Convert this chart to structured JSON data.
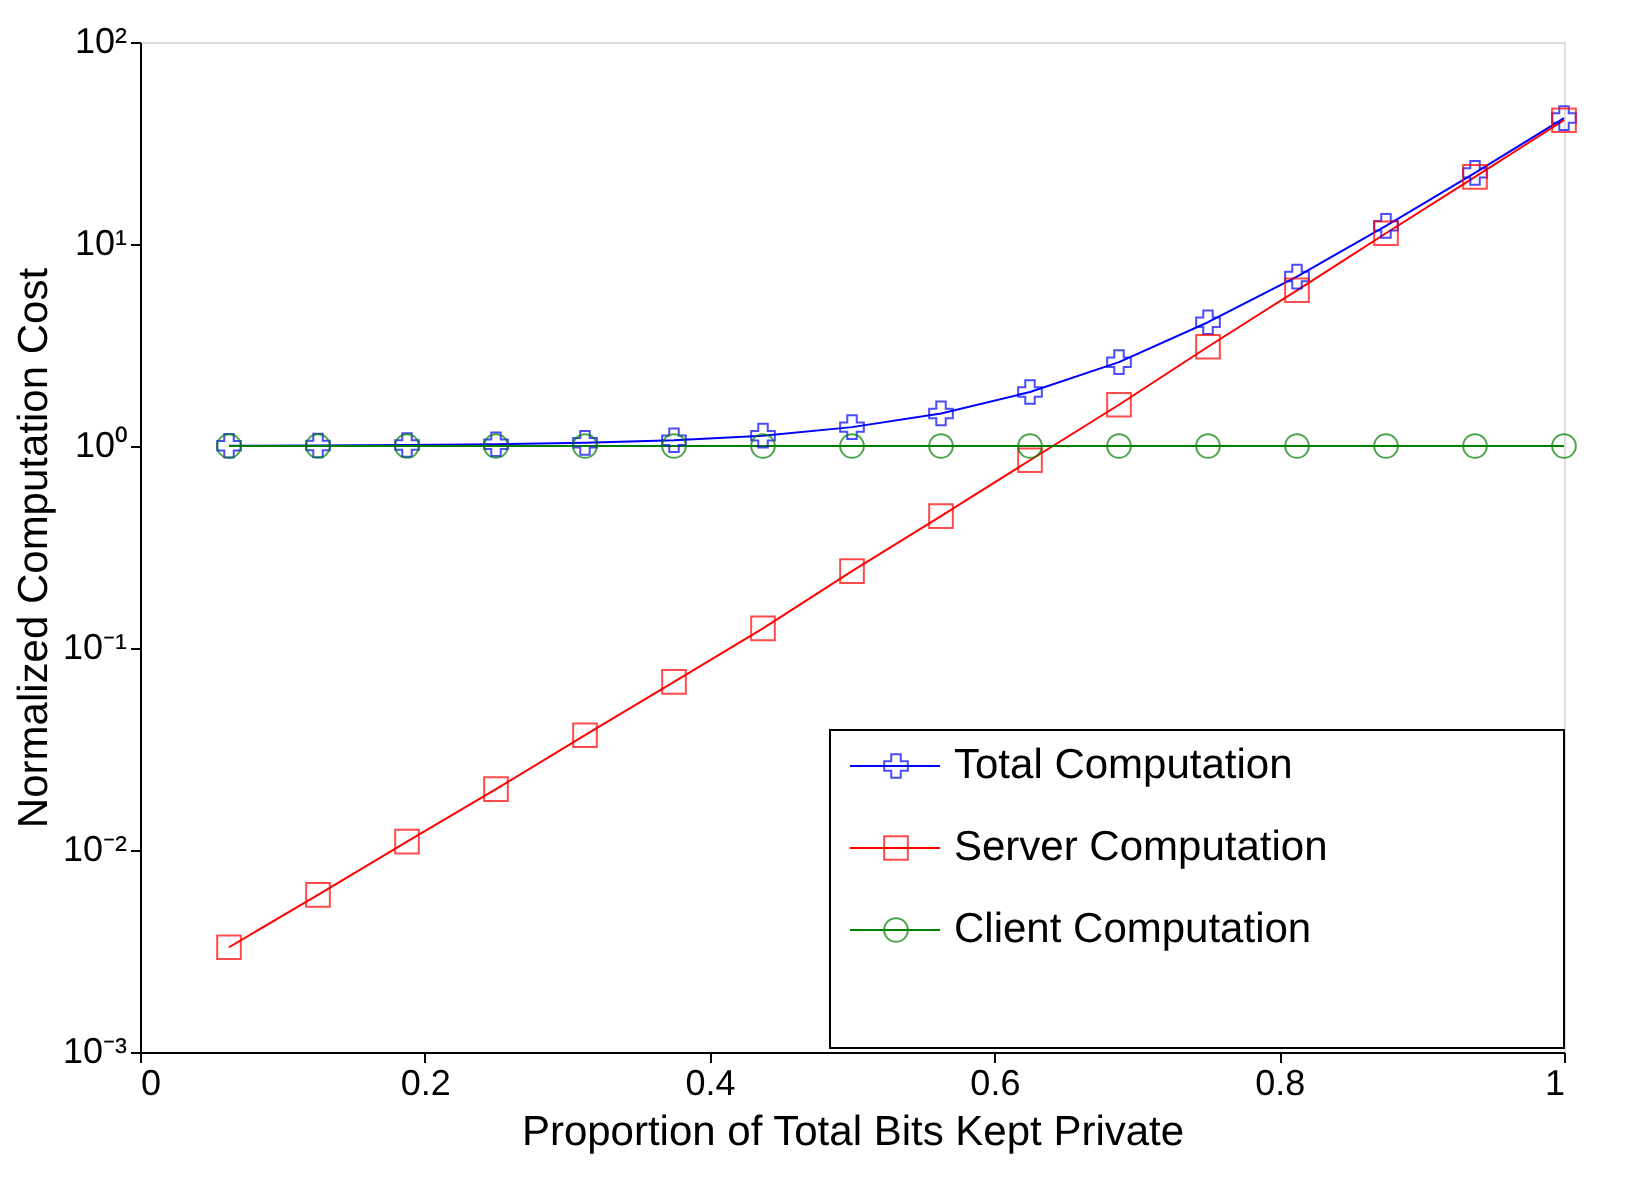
{
  "chart_data": {
    "type": "line",
    "xlabel": "Proportion of Total Bits Kept Private",
    "ylabel": "Normalized Computation Cost",
    "x": [
      0.0625,
      0.125,
      0.1875,
      0.25,
      0.3125,
      0.375,
      0.4375,
      0.5,
      0.5625,
      0.625,
      0.6875,
      0.75,
      0.8125,
      0.875,
      0.9375,
      1.0
    ],
    "series": [
      {
        "name": "Total Computation",
        "color": "#0000ff",
        "marker": "cross",
        "values": [
          1.003,
          1.006,
          1.011,
          1.02,
          1.037,
          1.068,
          1.125,
          1.24,
          1.45,
          1.85,
          2.6,
          4.1,
          6.9,
          12.3,
          22.5,
          42
        ]
      },
      {
        "name": "Server Computation",
        "color": "#ff0000",
        "marker": "square",
        "values": [
          0.0033,
          0.006,
          0.011,
          0.02,
          0.037,
          0.068,
          0.125,
          0.24,
          0.45,
          0.85,
          1.6,
          3.1,
          5.9,
          11.3,
          21.5,
          41
        ]
      },
      {
        "name": "Client Computation",
        "color": "#008000",
        "marker": "circle",
        "values": [
          1,
          1,
          1,
          1,
          1,
          1,
          1,
          1,
          1,
          1,
          1,
          1,
          1,
          1,
          1,
          1
        ]
      }
    ],
    "log": "y",
    "xlim": [
      0,
      1
    ],
    "xticks": [
      0,
      0.2,
      0.4,
      0.6,
      0.8,
      1
    ],
    "ylim": [
      0.001,
      100
    ],
    "yticks": [
      {
        "value": 0.001,
        "label": "10⁻³"
      },
      {
        "value": 0.01,
        "label": "10⁻²"
      },
      {
        "value": 0.1,
        "label": "10⁻¹"
      },
      {
        "value": 1,
        "label": "10⁰"
      },
      {
        "value": 10,
        "label": "10¹"
      },
      {
        "value": 100,
        "label": "10²"
      }
    ],
    "grid": false,
    "legend": "bottom right",
    "line_style": "solid"
  }
}
